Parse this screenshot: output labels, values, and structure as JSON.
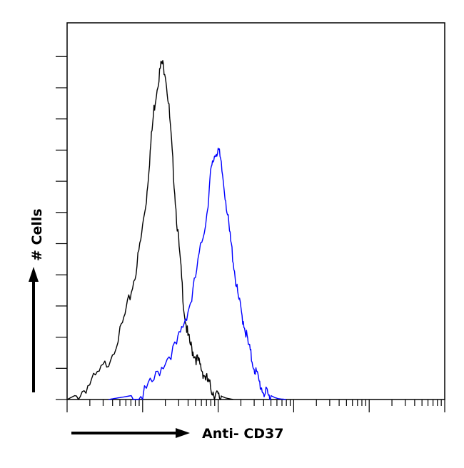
{
  "chart_data": {
    "type": "line",
    "title": "",
    "xlabel": "Anti- CD37",
    "ylabel": "# Cells",
    "x_scale": "log",
    "xlim": [
      0,
      1
    ],
    "ylim": [
      0,
      1
    ],
    "grid": false,
    "legend": "none",
    "series": [
      {
        "color": "#000000",
        "x": [
          0.0,
          0.02,
          0.05,
          0.08,
          0.11,
          0.14,
          0.16,
          0.18,
          0.195,
          0.21,
          0.22,
          0.23,
          0.24,
          0.25,
          0.26,
          0.27,
          0.28,
          0.29,
          0.3,
          0.31,
          0.32,
          0.33,
          0.34,
          0.35,
          0.36,
          0.37,
          0.38,
          0.39,
          0.4,
          0.41,
          0.42,
          0.43,
          0.44
        ],
        "y": [
          0.0,
          0.01,
          0.04,
          0.07,
          0.11,
          0.18,
          0.25,
          0.33,
          0.42,
          0.53,
          0.65,
          0.76,
          0.83,
          0.88,
          0.86,
          0.76,
          0.62,
          0.48,
          0.36,
          0.24,
          0.17,
          0.14,
          0.12,
          0.1,
          0.08,
          0.06,
          0.04,
          0.025,
          0.015,
          0.008,
          0.004,
          0.002,
          0.0
        ]
      },
      {
        "color": "#0000ff",
        "x": [
          0.11,
          0.14,
          0.17,
          0.2,
          0.23,
          0.26,
          0.29,
          0.31,
          0.33,
          0.35,
          0.37,
          0.38,
          0.39,
          0.4,
          0.41,
          0.42,
          0.43,
          0.44,
          0.45,
          0.46,
          0.47,
          0.48,
          0.49,
          0.5,
          0.51,
          0.52,
          0.53,
          0.54,
          0.55,
          0.56,
          0.57,
          0.58
        ],
        "y": [
          0.0,
          0.005,
          0.01,
          0.02,
          0.06,
          0.11,
          0.15,
          0.21,
          0.27,
          0.38,
          0.49,
          0.59,
          0.64,
          0.66,
          0.6,
          0.53,
          0.44,
          0.37,
          0.29,
          0.24,
          0.2,
          0.15,
          0.11,
          0.08,
          0.05,
          0.03,
          0.02,
          0.01,
          0.005,
          0.002,
          0.001,
          0.0
        ]
      }
    ]
  }
}
